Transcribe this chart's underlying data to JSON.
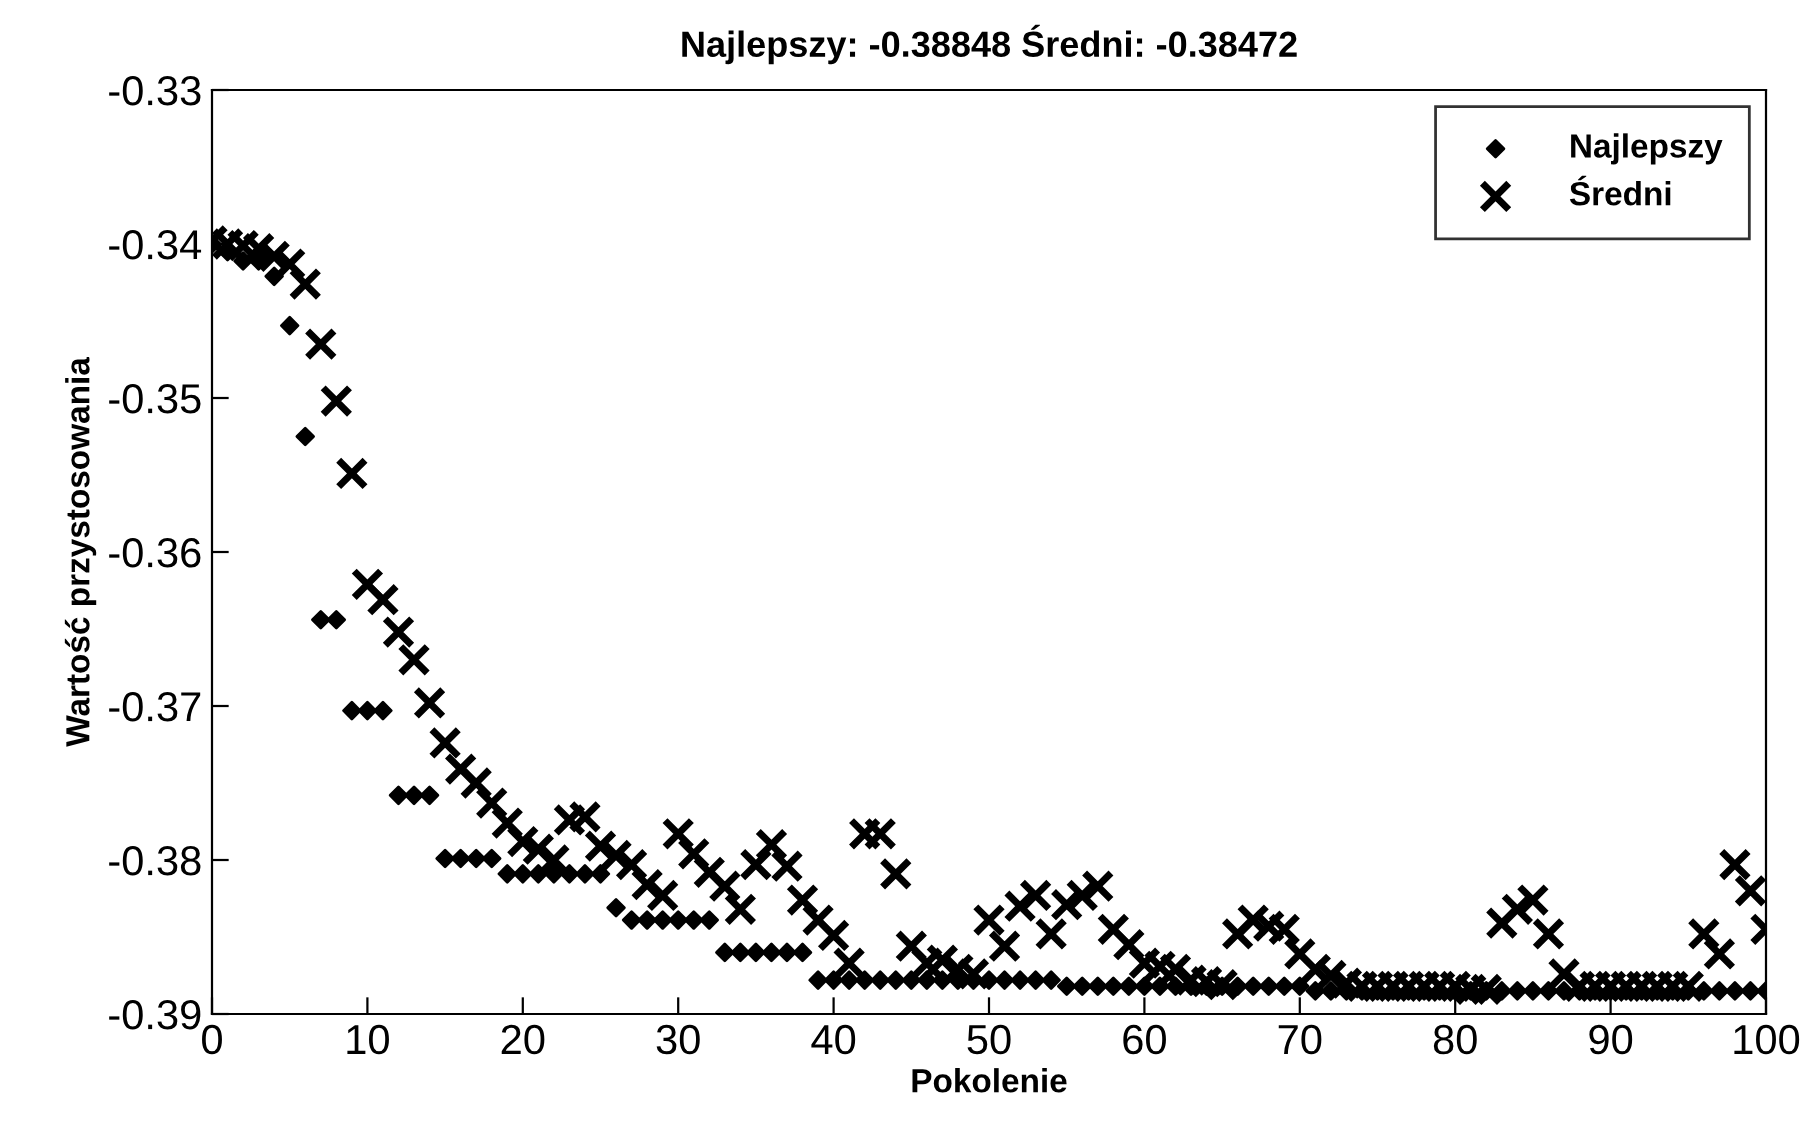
{
  "chart_data": {
    "type": "scatter",
    "title": "Najlepszy: -0.38848 Średni: -0.38472",
    "xlabel": "Pokolenie",
    "ylabel": "Wartość przystosowania",
    "x": [
      0,
      1,
      2,
      3,
      4,
      5,
      6,
      7,
      8,
      9,
      10,
      11,
      12,
      13,
      14,
      15,
      16,
      17,
      18,
      19,
      20,
      21,
      22,
      23,
      24,
      25,
      26,
      27,
      28,
      29,
      30,
      31,
      32,
      33,
      34,
      35,
      36,
      37,
      38,
      39,
      40,
      41,
      42,
      43,
      44,
      45,
      46,
      47,
      48,
      49,
      50,
      51,
      52,
      53,
      54,
      55,
      56,
      57,
      58,
      59,
      60,
      61,
      62,
      63,
      64,
      65,
      66,
      67,
      68,
      69,
      70,
      71,
      72,
      73,
      74,
      75,
      76,
      77,
      78,
      79,
      80,
      81,
      82,
      83,
      84,
      85,
      86,
      87,
      88,
      89,
      90,
      91,
      92,
      93,
      94,
      95,
      96,
      97,
      98,
      99,
      100
    ],
    "series": [
      {
        "name": "Najlepszy",
        "color": "#000000",
        "marker": "diamond",
        "values": [
          -0.34,
          -0.3405,
          -0.3411,
          -0.3411,
          -0.3421,
          -0.3453,
          -0.3525,
          -0.3644,
          -0.3644,
          -0.3703,
          -0.3703,
          -0.3703,
          -0.3758,
          -0.3758,
          -0.3758,
          -0.3799,
          -0.3799,
          -0.3799,
          -0.3799,
          -0.3809,
          -0.3809,
          -0.3809,
          -0.3809,
          -0.3809,
          -0.3809,
          -0.3809,
          -0.3831,
          -0.3839,
          -0.3839,
          -0.3839,
          -0.3839,
          -0.3839,
          -0.3839,
          -0.386,
          -0.386,
          -0.386,
          -0.386,
          -0.386,
          -0.386,
          -0.3878,
          -0.3878,
          -0.3878,
          -0.3878,
          -0.3878,
          -0.3878,
          -0.3878,
          -0.3878,
          -0.3878,
          -0.3878,
          -0.3878,
          -0.3878,
          -0.3878,
          -0.3878,
          -0.3878,
          -0.3878,
          -0.3882,
          -0.3882,
          -0.3882,
          -0.3882,
          -0.3882,
          -0.3882,
          -0.3882,
          -0.3882,
          -0.3882,
          -0.3882,
          -0.3882,
          -0.3882,
          -0.3882,
          -0.3882,
          -0.3882,
          -0.3882,
          -0.3885,
          -0.3885,
          -0.3885,
          -0.3885,
          -0.3885,
          -0.3885,
          -0.3885,
          -0.3885,
          -0.3885,
          -0.3885,
          -0.3885,
          -0.3885,
          -0.3885,
          -0.3885,
          -0.3885,
          -0.3885,
          -0.3885,
          -0.3885,
          -0.3885,
          -0.3885,
          -0.3885,
          -0.3885,
          -0.3885,
          -0.3885,
          -0.3885,
          -0.3885,
          -0.3885,
          -0.3885,
          -0.3885,
          -0.3885
        ]
      },
      {
        "name": "Średni",
        "color": "#000000",
        "marker": "cross",
        "values": [
          -0.3398,
          -0.34,
          -0.3401,
          -0.3403,
          -0.3408,
          -0.3413,
          -0.3426,
          -0.3465,
          -0.3502,
          -0.3549,
          -0.3621,
          -0.3631,
          -0.3652,
          -0.367,
          -0.3698,
          -0.3724,
          -0.3741,
          -0.375,
          -0.3763,
          -0.3776,
          -0.3788,
          -0.3793,
          -0.38,
          -0.3774,
          -0.3772,
          -0.3791,
          -0.3797,
          -0.3803,
          -0.3816,
          -0.3823,
          -0.3783,
          -0.3796,
          -0.3808,
          -0.3817,
          -0.3832,
          -0.3803,
          -0.379,
          -0.3804,
          -0.3826,
          -0.3839,
          -0.3849,
          -0.3867,
          -0.3783,
          -0.3783,
          -0.3809,
          -0.3856,
          -0.3867,
          -0.3865,
          -0.3871,
          -0.3874,
          -0.3839,
          -0.3856,
          -0.383,
          -0.3823,
          -0.3848,
          -0.3829,
          -0.3823,
          -0.3817,
          -0.3845,
          -0.3855,
          -0.3867,
          -0.3869,
          -0.3871,
          -0.3878,
          -0.3879,
          -0.3881,
          -0.3848,
          -0.3839,
          -0.3843,
          -0.3845,
          -0.3861,
          -0.3871,
          -0.3875,
          -0.388,
          -0.3882,
          -0.3882,
          -0.3882,
          -0.3882,
          -0.3882,
          -0.3882,
          -0.3882,
          -0.3884,
          -0.3884,
          -0.3841,
          -0.3832,
          -0.3826,
          -0.3848,
          -0.3874,
          -0.3882,
          -0.3882,
          -0.3882,
          -0.3882,
          -0.3882,
          -0.3882,
          -0.3882,
          -0.3882,
          -0.3848,
          -0.3861,
          -0.3803,
          -0.382,
          -0.3845
        ]
      }
    ],
    "xlim": [
      0,
      100
    ],
    "xticks": [
      0,
      10,
      20,
      30,
      40,
      50,
      60,
      70,
      80,
      90,
      100
    ],
    "ylim": [
      -0.39,
      -0.33
    ],
    "yticks": [
      -0.39,
      -0.38,
      -0.37,
      -0.36,
      -0.35,
      -0.34,
      -0.33
    ],
    "grid": false,
    "legend": "top right"
  }
}
